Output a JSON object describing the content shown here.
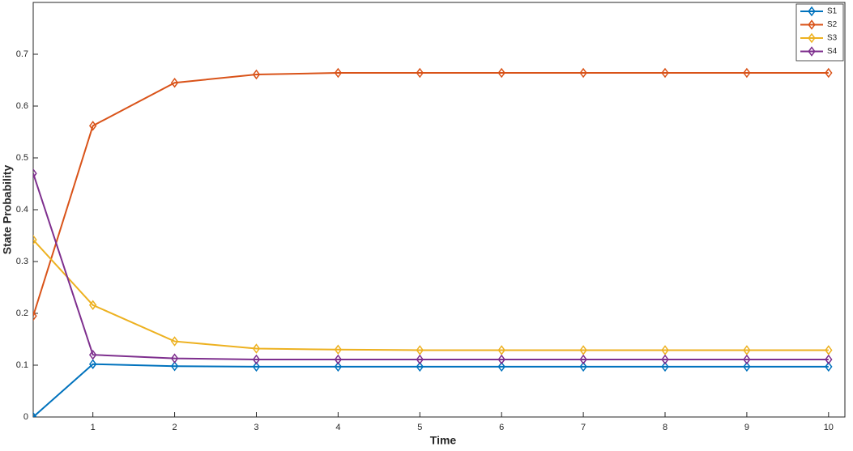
{
  "chart_data": {
    "type": "line",
    "x_label": "Time",
    "y_label": "State Probability",
    "x": [
      0.27,
      1,
      2,
      3,
      4,
      5,
      6,
      7,
      8,
      9,
      10
    ],
    "series": [
      {
        "name": "S1",
        "color": "#0072BD",
        "values": [
          0,
          0.102,
          0.098,
          0.097,
          0.097,
          0.097,
          0.097,
          0.097,
          0.097,
          0.097,
          0.097
        ]
      },
      {
        "name": "S2",
        "color": "#D95319",
        "values": [
          0.195,
          0.562,
          0.645,
          0.661,
          0.664,
          0.664,
          0.664,
          0.664,
          0.664,
          0.664,
          0.664
        ]
      },
      {
        "name": "S3",
        "color": "#EDB120",
        "values": [
          0.342,
          0.216,
          0.146,
          0.132,
          0.13,
          0.129,
          0.129,
          0.129,
          0.129,
          0.129,
          0.129
        ]
      },
      {
        "name": "S4",
        "color": "#7E2F8E",
        "values": [
          0.47,
          0.12,
          0.113,
          0.111,
          0.111,
          0.111,
          0.111,
          0.111,
          0.111,
          0.111,
          0.111
        ]
      }
    ],
    "xlim": [
      0.27,
      10.2
    ],
    "ylim": [
      0,
      0.8
    ],
    "xticks": [
      1,
      2,
      3,
      4,
      5,
      6,
      7,
      8,
      9,
      10
    ],
    "yticks": [
      0,
      0.1,
      0.2,
      0.3,
      0.4,
      0.5,
      0.6,
      0.7
    ],
    "marker": "diamond",
    "legend": "top-right",
    "grid": false
  }
}
